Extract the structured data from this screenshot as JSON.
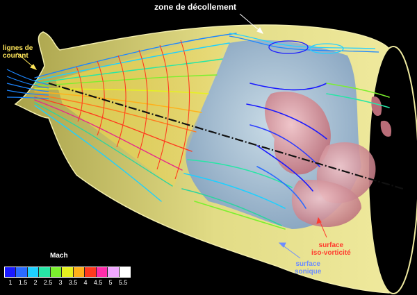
{
  "labels": {
    "zone_decollement": "zone de décollement",
    "lignes_l1": "lignes de",
    "lignes_l2": "courant",
    "iso_l1": "surface",
    "iso_l2": "iso-vorticité",
    "sonique_l1": "surface",
    "sonique_l2": "sonique"
  },
  "legend": {
    "title": "Mach",
    "ticks": [
      "1",
      "1.5",
      "2",
      "2.5",
      "3",
      "3.5",
      "4",
      "4.5",
      "5",
      "5.5"
    ],
    "colors": [
      "#1a1aff",
      "#2a6bff",
      "#1ed0ff",
      "#27e6a6",
      "#7bf02e",
      "#e6f21f",
      "#ffb01a",
      "#ff3a1e",
      "#ff2dab",
      "#f0a8ff",
      "#ffffff"
    ]
  },
  "colors": {
    "nozzle_wall": "#dcd578",
    "sonic_surface": "#9fbad6",
    "vorticity_surface": "#d99aa2",
    "axis_line": "#111111"
  }
}
